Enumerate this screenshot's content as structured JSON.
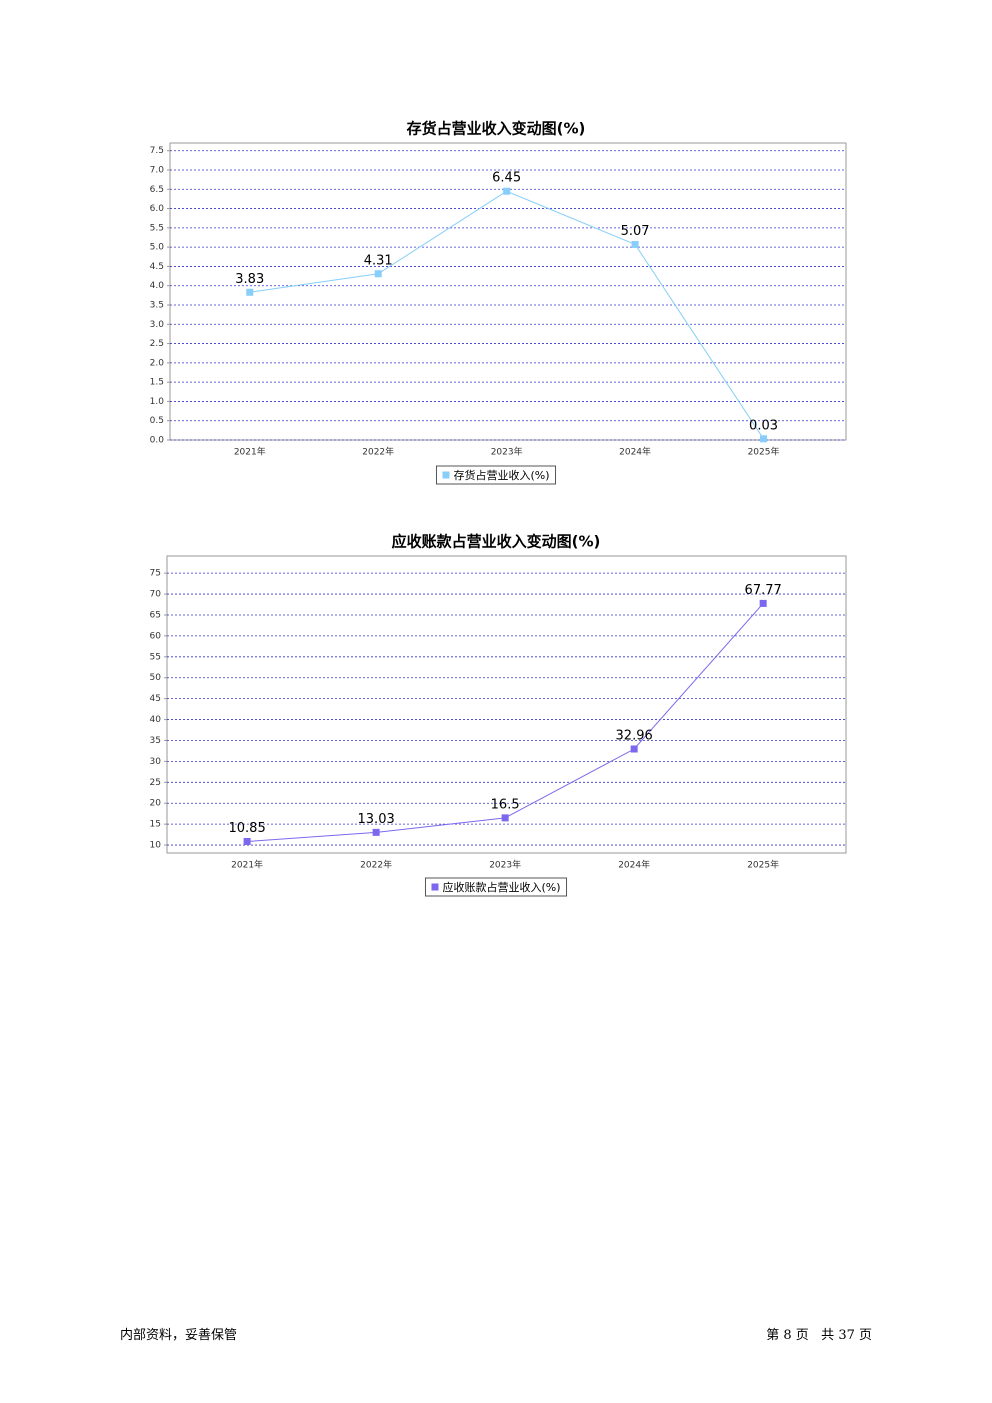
{
  "chart_data": [
    {
      "type": "line",
      "title": "存货占营业收入变动图(%)",
      "categories": [
        "2021年",
        "2022年",
        "2023年",
        "2024年",
        "2025年"
      ],
      "series": [
        {
          "name": "存货占营业收入(%)",
          "color": "#87cefa",
          "values": [
            3.83,
            4.31,
            6.45,
            5.07,
            0.03
          ]
        }
      ],
      "ylim": [
        0,
        7.7
      ],
      "yticks": [
        {
          "value": 0,
          "label": "0.0"
        },
        0.5,
        {
          "value": 1,
          "label": "1.0"
        },
        1.5,
        {
          "value": 2,
          "label": "2.0"
        },
        2.5,
        {
          "value": 3,
          "label": "3.0"
        },
        3.5,
        {
          "value": 4,
          "label": "4.0"
        },
        4.5,
        {
          "value": 5,
          "label": "5.0"
        },
        5.5,
        {
          "value": 6,
          "label": "6.0"
        },
        6.5,
        {
          "value": 7,
          "label": "7.0"
        },
        7.5
      ],
      "grid": true,
      "legend": "bottom"
    },
    {
      "type": "line",
      "title": "应收账款占营业收入变动图(%)",
      "categories": [
        "2021年",
        "2022年",
        "2023年",
        "2024年",
        "2025年"
      ],
      "series": [
        {
          "name": "应收账款占营业收入(%)",
          "color": "#7b68ee",
          "values": [
            10.85,
            13.03,
            16.5,
            32.96,
            67.77
          ]
        }
      ],
      "ylim": [
        8.1,
        79.1
      ],
      "yticks": [
        10,
        15,
        20,
        25,
        30,
        35,
        40,
        45,
        50,
        55,
        60,
        65,
        70,
        75
      ],
      "grid": true,
      "legend": "bottom"
    }
  ],
  "footer": {
    "note": "内部资料，妥善保管",
    "page": "第 8 页   共 37 页"
  }
}
